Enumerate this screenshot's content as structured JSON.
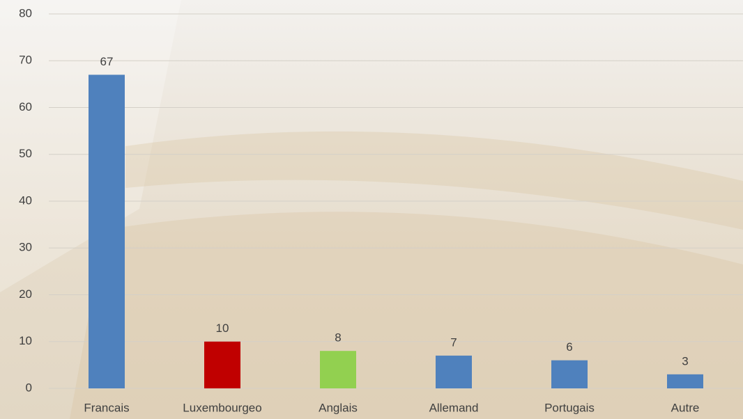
{
  "chart_data": {
    "type": "bar",
    "categories": [
      "Francais",
      "Luxembourgeo",
      "Anglais",
      "Allemand",
      "Portugais",
      "Autre"
    ],
    "values": [
      67,
      10,
      8,
      7,
      6,
      3
    ],
    "colors": [
      "#4f81bd",
      "#c00000",
      "#92d050",
      "#4f81bd",
      "#4f81bd",
      "#4f81bd"
    ],
    "ylim": [
      0,
      80
    ],
    "yticks": [
      0,
      10,
      20,
      30,
      40,
      50,
      60,
      70,
      80
    ],
    "grid": true
  }
}
